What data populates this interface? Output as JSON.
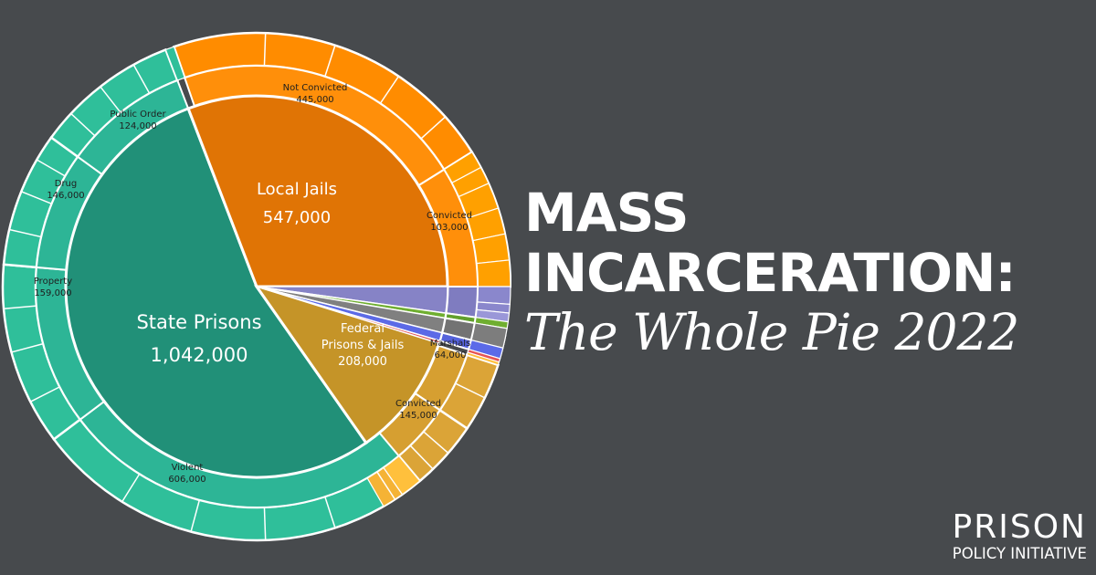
{
  "title": {
    "line1": "MASS",
    "line2": "INCARCERATION:",
    "subtitle": "The Whole Pie 2022"
  },
  "logo": {
    "top": "PRISON",
    "bottom": "POLICY INITIATIVE"
  },
  "chart_data": {
    "type": "pie",
    "style": "nested-donut",
    "center_labels": {
      "state": {
        "name": "State Prisons",
        "value": "1,042,000"
      },
      "jails": {
        "name": "Local Jails",
        "value": "547,000"
      },
      "federal": {
        "name1": "Federal",
        "name2": "Prisons & Jails",
        "value": "208,000"
      }
    },
    "inner": [
      {
        "key": "state",
        "value": 1042000,
        "color": "#219078"
      },
      {
        "key": "jails",
        "value": 547000,
        "color": "#e07405"
      },
      {
        "key": "federal",
        "value": 208000,
        "color": "#c59428"
      }
    ],
    "outer": [
      {
        "key": "st_violent",
        "name": "Violent",
        "value_label": "606,000",
        "value": 606000,
        "color": "#2fbf9a",
        "label": true
      },
      {
        "key": "st_property",
        "name": "Property",
        "value_label": "159,000",
        "value": 159000,
        "color": "#2fbf9a",
        "label": true
      },
      {
        "key": "st_drug",
        "name": "Drug",
        "value_label": "146,000",
        "value": 146000,
        "color": "#2fbf9a",
        "label": true
      },
      {
        "key": "st_public",
        "name": "Public Order",
        "value_label": "124,000",
        "value": 124000,
        "color": "#2fbf9a",
        "label": true
      },
      {
        "key": "jl_notconv",
        "name": "Not Convicted",
        "value_label": "445,000",
        "value": 445000,
        "color": "#ff8c00",
        "label": true
      },
      {
        "key": "jl_conv",
        "name": "Convicted",
        "value_label": "103,000",
        "value": 103000,
        "color": "#ff8c00",
        "label": true
      },
      {
        "key": "fed_conv",
        "name": "Convicted",
        "value_label": "145,000",
        "value": 145000,
        "color": "#dba437",
        "label": true
      },
      {
        "key": "fed_marshals",
        "name": "Marshals",
        "value_label": "64,000",
        "value": 64000,
        "color": "#dba437",
        "label": true
      }
    ]
  }
}
